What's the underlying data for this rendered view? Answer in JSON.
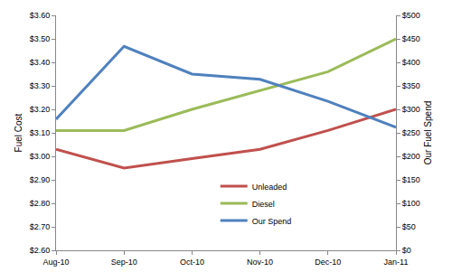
{
  "chart_data": {
    "type": "line",
    "categories": [
      "Aug-10",
      "Sep-10",
      "Oct-10",
      "Nov-10",
      "Dec-10",
      "Jan-11"
    ],
    "series": [
      {
        "name": "Unleaded",
        "color": "#c0504d",
        "values": [
          3.03,
          2.95,
          2.99,
          3.03,
          3.11,
          3.2
        ]
      },
      {
        "name": "Diesel",
        "color": "#9bbb59",
        "values": [
          3.11,
          3.11,
          3.2,
          3.28,
          3.36,
          3.5
        ]
      },
      {
        "name": "Our Spend",
        "color": "#4f81bd",
        "axis": "y2",
        "values": [
          279,
          434,
          375,
          364,
          317,
          262
        ]
      }
    ],
    "y_label": "Fuel Cost",
    "y2_label": "Our Fuel Spend",
    "ylim": [
      2.6,
      3.6
    ],
    "yticks": [
      {
        "value": 2.6,
        "label": "$2.60"
      },
      {
        "value": 2.7,
        "label": "$2.70"
      },
      {
        "value": 2.8,
        "label": "$2.80"
      },
      {
        "value": 2.9,
        "label": "$2.90"
      },
      {
        "value": 3.0,
        "label": "$3.00"
      },
      {
        "value": 3.1,
        "label": "$3.10"
      },
      {
        "value": 3.2,
        "label": "$3.20"
      },
      {
        "value": 3.3,
        "label": "$3.30"
      },
      {
        "value": 3.4,
        "label": "$3.40"
      },
      {
        "value": 3.5,
        "label": "$3.50"
      },
      {
        "value": 3.6,
        "label": "$3.60"
      }
    ],
    "y2lim": [
      0,
      500
    ],
    "y2ticks": [
      {
        "value": 0,
        "label": "$0"
      },
      {
        "value": 50,
        "label": "$50"
      },
      {
        "value": 100,
        "label": "$100"
      },
      {
        "value": 150,
        "label": "$150"
      },
      {
        "value": 200,
        "label": "$200"
      },
      {
        "value": 250,
        "label": "$250"
      },
      {
        "value": 300,
        "label": "$300"
      },
      {
        "value": 350,
        "label": "$350"
      },
      {
        "value": 400,
        "label": "$400"
      },
      {
        "value": 450,
        "label": "$450"
      },
      {
        "value": 500,
        "label": "$500"
      }
    ],
    "grid": false,
    "legend": "bottom"
  }
}
